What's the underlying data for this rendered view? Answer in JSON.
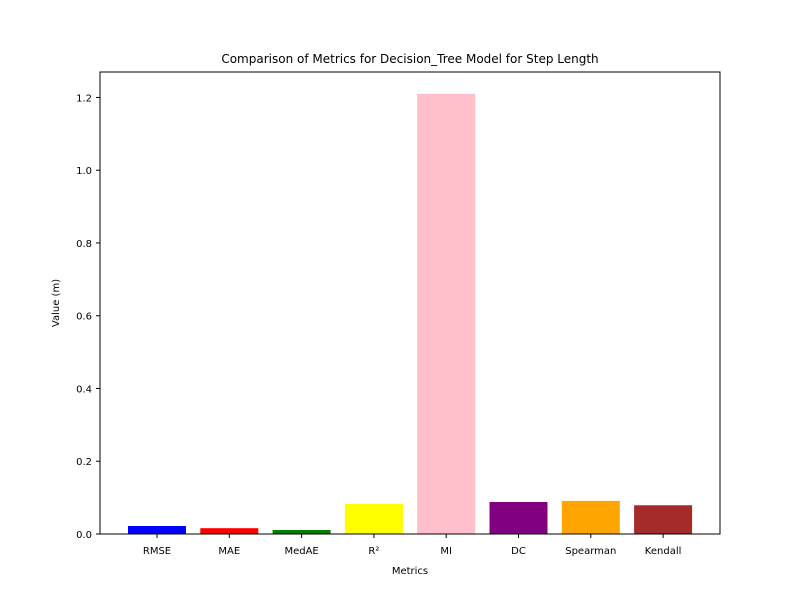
{
  "chart_data": {
    "type": "bar",
    "title": "Comparison of Metrics for Decision_Tree Model for Step Length",
    "xlabel": "Metrics",
    "ylabel": "Value (m)",
    "categories": [
      "RMSE",
      "MAE",
      "MedAE",
      "R²",
      "MI",
      "DC",
      "Spearman",
      "Kendall"
    ],
    "values": [
      0.022,
      0.016,
      0.011,
      0.083,
      1.21,
      0.088,
      0.091,
      0.079
    ],
    "colors": [
      "#0000ff",
      "#ff0000",
      "#008000",
      "#ffff00",
      "#ffc0cb",
      "#800080",
      "#ffa500",
      "#a52a2a"
    ],
    "yticks": [
      "0.0",
      "0.2",
      "0.4",
      "0.6",
      "0.8",
      "1.0",
      "1.2"
    ],
    "ylim": [
      0,
      1.27
    ],
    "grid": false,
    "legend": "none"
  }
}
